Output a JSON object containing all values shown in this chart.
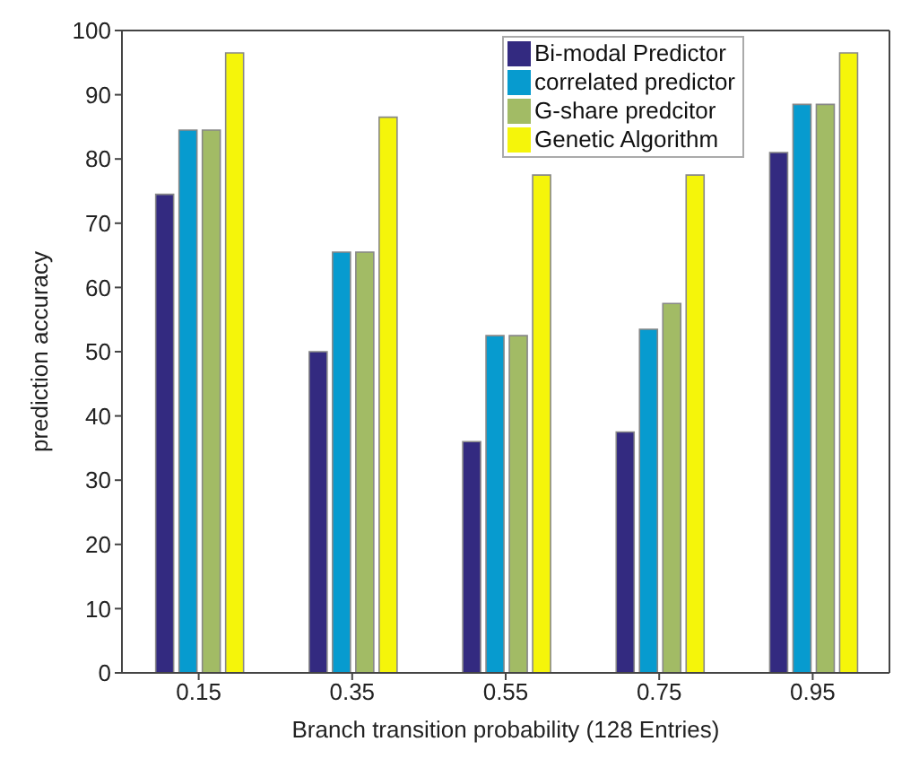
{
  "chart_data": {
    "type": "bar",
    "xlabel": "Branch transition probability (128 Entries)",
    "ylabel": "prediction accuracy",
    "categories": [
      "0.15",
      "0.35",
      "0.55",
      "0.75",
      "0.95"
    ],
    "series": [
      {
        "name": "Bi-modal Predictor",
        "color": "#332a80",
        "values": [
          74.5,
          50,
          36,
          37.5,
          81
        ]
      },
      {
        "name": "correlated predictor",
        "color": "#079bcf",
        "values": [
          84.5,
          65.5,
          52.5,
          53.5,
          88.5
        ]
      },
      {
        "name": "G-share predcitor",
        "color": "#a2bb65",
        "values": [
          84.5,
          65.5,
          52.5,
          57.5,
          88.5
        ]
      },
      {
        "name": "Genetic Algorithm",
        "color": "#f5f50a",
        "values": [
          96.5,
          86.5,
          77.5,
          77.5,
          96.5
        ]
      }
    ],
    "ylim": [
      0,
      100
    ],
    "yticks": [
      0,
      10,
      20,
      30,
      40,
      50,
      60,
      70,
      80,
      90,
      100
    ],
    "grid": false,
    "legend": "top right"
  }
}
